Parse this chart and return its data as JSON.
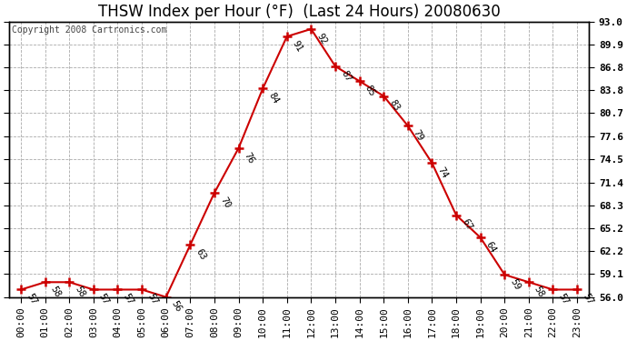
{
  "title": "THSW Index per Hour (°F)  (Last 24 Hours) 20080630",
  "copyright": "Copyright 2008 Cartronics.com",
  "hours": [
    "00:00",
    "01:00",
    "02:00",
    "03:00",
    "04:00",
    "05:00",
    "06:00",
    "07:00",
    "08:00",
    "09:00",
    "10:00",
    "11:00",
    "12:00",
    "13:00",
    "14:00",
    "15:00",
    "16:00",
    "17:00",
    "18:00",
    "19:00",
    "20:00",
    "21:00",
    "22:00",
    "23:00"
  ],
  "values": [
    57,
    58,
    58,
    57,
    57,
    57,
    56,
    63,
    70,
    76,
    84,
    91,
    92,
    87,
    85,
    83,
    79,
    74,
    67,
    64,
    59,
    58,
    57,
    57
  ],
  "ylim_min": 56.0,
  "ylim_max": 93.0,
  "yticks": [
    56.0,
    59.1,
    62.2,
    65.2,
    68.3,
    71.4,
    74.5,
    77.6,
    80.7,
    83.8,
    86.8,
    89.9,
    93.0
  ],
  "ytick_labels": [
    "56.0",
    "59.1",
    "62.2",
    "65.2",
    "68.3",
    "71.4",
    "74.5",
    "77.6",
    "80.7",
    "83.8",
    "86.8",
    "89.9",
    "93.0"
  ],
  "line_color": "#cc0000",
  "marker_color": "#cc0000",
  "bg_color": "#ffffff",
  "grid_color": "#aaaaaa",
  "title_color": "#000000",
  "annotation_color": "#000000",
  "copyright_color": "#444444",
  "title_fontsize": 12,
  "tick_fontsize": 8,
  "annot_fontsize": 7.5,
  "copyright_fontsize": 7
}
